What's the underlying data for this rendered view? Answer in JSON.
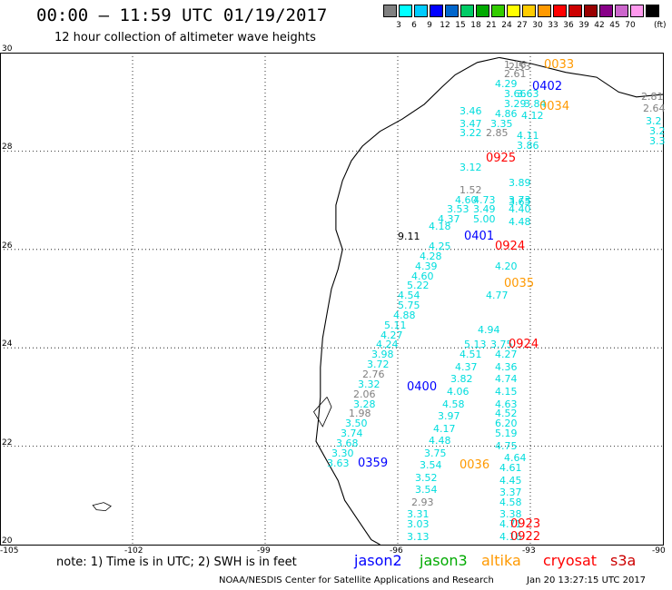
{
  "header": {
    "title": "00:00 – 11:59 UTC 01/19/2017",
    "subtitle": "12 hour collection of altimeter wave heights"
  },
  "legend": {
    "colors": [
      "#808080",
      "#00ffff",
      "#00ccff",
      "#0000ff",
      "#0066cc",
      "#00cc66",
      "#00aa00",
      "#33cc00",
      "#ffff00",
      "#ffcc00",
      "#ff9900",
      "#ff0000",
      "#cc0000",
      "#990000",
      "#880088",
      "#cc66cc",
      "#ff99ee",
      "#000000"
    ],
    "labels": [
      "3",
      "6",
      "9",
      "12",
      "15",
      "18",
      "21",
      "24",
      "27",
      "30",
      "33",
      "36",
      "39",
      "42",
      "45",
      "70"
    ],
    "unit": "(ft)"
  },
  "map": {
    "lon_labels": [
      "-105",
      "-102",
      "-99",
      "-96",
      "-93",
      "-90"
    ],
    "lat_labels": [
      "30",
      "28",
      "26",
      "24",
      "22",
      "20"
    ],
    "lon_range": [
      -105,
      -90
    ],
    "lat_range": [
      20,
      30
    ]
  },
  "observations": [
    {
      "v": "2.53",
      "c": "#808080",
      "lon": -93.5,
      "lat": 29.7
    },
    {
      "v": "1.16",
      "c": "#808080",
      "lon": -93.6,
      "lat": 29.75
    },
    {
      "v": "2.61",
      "c": "#808080",
      "lon": -93.6,
      "lat": 29.55
    },
    {
      "v": "4.29",
      "c": "#00dddd",
      "lon": -93.8,
      "lat": 29.35
    },
    {
      "v": "3.66",
      "c": "#00dddd",
      "lon": -93.6,
      "lat": 29.15
    },
    {
      "v": "3.63",
      "c": "#00dddd",
      "lon": -93.3,
      "lat": 29.15
    },
    {
      "v": "3.29",
      "c": "#00dddd",
      "lon": -93.6,
      "lat": 28.95
    },
    {
      "v": "3.84",
      "c": "#00dddd",
      "lon": -93.15,
      "lat": 28.95
    },
    {
      "v": "3.46",
      "c": "#00dddd",
      "lon": -94.6,
      "lat": 28.8
    },
    {
      "v": "4.86",
      "c": "#00dddd",
      "lon": -93.8,
      "lat": 28.75
    },
    {
      "v": "4.12",
      "c": "#00dddd",
      "lon": -93.2,
      "lat": 28.7
    },
    {
      "v": "3.47",
      "c": "#00dddd",
      "lon": -94.6,
      "lat": 28.55
    },
    {
      "v": "3.35",
      "c": "#00dddd",
      "lon": -93.9,
      "lat": 28.55
    },
    {
      "v": "4.11",
      "c": "#00dddd",
      "lon": -93.3,
      "lat": 28.3
    },
    {
      "v": "3.22",
      "c": "#00dddd",
      "lon": -94.6,
      "lat": 28.35
    },
    {
      "v": "2.85",
      "c": "#808080",
      "lon": -94.0,
      "lat": 28.35
    },
    {
      "v": "3.86",
      "c": "#00dddd",
      "lon": -93.3,
      "lat": 28.1
    },
    {
      "v": "3.12",
      "c": "#00dddd",
      "lon": -94.6,
      "lat": 27.65
    },
    {
      "v": "3.89",
      "c": "#00dddd",
      "lon": -93.5,
      "lat": 27.35
    },
    {
      "v": "3.65",
      "c": "#00dddd",
      "lon": -93.5,
      "lat": 26.95
    },
    {
      "v": "1.52",
      "c": "#808080",
      "lon": -94.6,
      "lat": 27.2
    },
    {
      "v": "4.60",
      "c": "#00dddd",
      "lon": -94.7,
      "lat": 27.0
    },
    {
      "v": "4.73",
      "c": "#00dddd",
      "lon": -94.3,
      "lat": 27.0
    },
    {
      "v": "3.73",
      "c": "#00dddd",
      "lon": -93.5,
      "lat": 27.0
    },
    {
      "v": "3.53",
      "c": "#00dddd",
      "lon": -94.9,
      "lat": 26.8
    },
    {
      "v": "3.49",
      "c": "#00dddd",
      "lon": -94.3,
      "lat": 26.8
    },
    {
      "v": "4.40",
      "c": "#00dddd",
      "lon": -93.5,
      "lat": 26.8
    },
    {
      "v": "4.37",
      "c": "#00dddd",
      "lon": -95.1,
      "lat": 26.6
    },
    {
      "v": "5.00",
      "c": "#00dddd",
      "lon": -94.3,
      "lat": 26.6
    },
    {
      "v": "4.48",
      "c": "#00dddd",
      "lon": -93.5,
      "lat": 26.55
    },
    {
      "v": "4.18",
      "c": "#00dddd",
      "lon": -95.3,
      "lat": 26.45
    },
    {
      "v": "9.11",
      "c": "#000000",
      "lon": -96.0,
      "lat": 26.25
    },
    {
      "v": "4.25",
      "c": "#00dddd",
      "lon": -95.3,
      "lat": 26.05
    },
    {
      "v": "4.28",
      "c": "#00dddd",
      "lon": -95.5,
      "lat": 25.85
    },
    {
      "v": "4.39",
      "c": "#00dddd",
      "lon": -95.6,
      "lat": 25.65
    },
    {
      "v": "4.20",
      "c": "#00dddd",
      "lon": -93.8,
      "lat": 25.65
    },
    {
      "v": "4.60",
      "c": "#00dddd",
      "lon": -95.7,
      "lat": 25.45
    },
    {
      "v": "5.22",
      "c": "#00dddd",
      "lon": -95.8,
      "lat": 25.25
    },
    {
      "v": "4.54",
      "c": "#00dddd",
      "lon": -96.0,
      "lat": 25.05
    },
    {
      "v": "4.77",
      "c": "#00dddd",
      "lon": -94.0,
      "lat": 25.05
    },
    {
      "v": "5.75",
      "c": "#00dddd",
      "lon": -96.0,
      "lat": 24.85
    },
    {
      "v": "4.88",
      "c": "#00dddd",
      "lon": -96.1,
      "lat": 24.65
    },
    {
      "v": "5.11",
      "c": "#00dddd",
      "lon": -96.3,
      "lat": 24.45
    },
    {
      "v": "4.27",
      "c": "#00dddd",
      "lon": -96.4,
      "lat": 24.25
    },
    {
      "v": "4.94",
      "c": "#00dddd",
      "lon": -94.2,
      "lat": 24.35
    },
    {
      "v": "4.24",
      "c": "#00dddd",
      "lon": -96.5,
      "lat": 24.05
    },
    {
      "v": "5.13",
      "c": "#00dddd",
      "lon": -94.5,
      "lat": 24.05
    },
    {
      "v": "3.75",
      "c": "#00dddd",
      "lon": -93.9,
      "lat": 24.05
    },
    {
      "v": "3.98",
      "c": "#00dddd",
      "lon": -96.6,
      "lat": 23.85
    },
    {
      "v": "4.51",
      "c": "#00dddd",
      "lon": -94.6,
      "lat": 23.85
    },
    {
      "v": "4.27",
      "c": "#00dddd",
      "lon": -93.8,
      "lat": 23.85
    },
    {
      "v": "3.72",
      "c": "#00dddd",
      "lon": -96.7,
      "lat": 23.65
    },
    {
      "v": "4.37",
      "c": "#00dddd",
      "lon": -94.7,
      "lat": 23.6
    },
    {
      "v": "4.36",
      "c": "#00dddd",
      "lon": -93.8,
      "lat": 23.6
    },
    {
      "v": "2.76",
      "c": "#808080",
      "lon": -96.8,
      "lat": 23.45
    },
    {
      "v": "3.82",
      "c": "#00dddd",
      "lon": -94.8,
      "lat": 23.35
    },
    {
      "v": "4.74",
      "c": "#00dddd",
      "lon": -93.8,
      "lat": 23.35
    },
    {
      "v": "3.32",
      "c": "#00dddd",
      "lon": -96.9,
      "lat": 23.25
    },
    {
      "v": "4.06",
      "c": "#00dddd",
      "lon": -94.9,
      "lat": 23.1
    },
    {
      "v": "4.15",
      "c": "#00dddd",
      "lon": -93.8,
      "lat": 23.1
    },
    {
      "v": "2.06",
      "c": "#808080",
      "lon": -97.0,
      "lat": 23.05
    },
    {
      "v": "3.28",
      "c": "#00dddd",
      "lon": -97.0,
      "lat": 22.85
    },
    {
      "v": "4.58",
      "c": "#00dddd",
      "lon": -95.0,
      "lat": 22.85
    },
    {
      "v": "4.63",
      "c": "#00dddd",
      "lon": -93.8,
      "lat": 22.85
    },
    {
      "v": "1.98",
      "c": "#808080",
      "lon": -97.1,
      "lat": 22.65
    },
    {
      "v": "3.97",
      "c": "#00dddd",
      "lon": -95.1,
      "lat": 22.6
    },
    {
      "v": "4.52",
      "c": "#00dddd",
      "lon": -93.8,
      "lat": 22.65
    },
    {
      "v": "3.50",
      "c": "#00dddd",
      "lon": -97.2,
      "lat": 22.45
    },
    {
      "v": "6.20",
      "c": "#00dddd",
      "lon": -93.8,
      "lat": 22.45
    },
    {
      "v": "3.74",
      "c": "#00dddd",
      "lon": -97.3,
      "lat": 22.25
    },
    {
      "v": "4.17",
      "c": "#00dddd",
      "lon": -95.2,
      "lat": 22.35
    },
    {
      "v": "5.19",
      "c": "#00dddd",
      "lon": -93.8,
      "lat": 22.25
    },
    {
      "v": "3.68",
      "c": "#00dddd",
      "lon": -97.4,
      "lat": 22.05
    },
    {
      "v": "4.48",
      "c": "#00dddd",
      "lon": -95.3,
      "lat": 22.1
    },
    {
      "v": "4.75",
      "c": "#00dddd",
      "lon": -93.8,
      "lat": 22.0
    },
    {
      "v": "3.30",
      "c": "#00dddd",
      "lon": -97.5,
      "lat": 21.85
    },
    {
      "v": "3.75",
      "c": "#00dddd",
      "lon": -95.4,
      "lat": 21.85
    },
    {
      "v": "4.64",
      "c": "#00dddd",
      "lon": -93.6,
      "lat": 21.75
    },
    {
      "v": "3.63",
      "c": "#00dddd",
      "lon": -97.6,
      "lat": 21.65
    },
    {
      "v": "3.54",
      "c": "#00dddd",
      "lon": -95.5,
      "lat": 21.6
    },
    {
      "v": "4.61",
      "c": "#00dddd",
      "lon": -93.7,
      "lat": 21.55
    },
    {
      "v": "3.52",
      "c": "#00dddd",
      "lon": -95.6,
      "lat": 21.35
    },
    {
      "v": "4.45",
      "c": "#00dddd",
      "lon": -93.7,
      "lat": 21.3
    },
    {
      "v": "3.54",
      "c": "#00dddd",
      "lon": -95.6,
      "lat": 21.1
    },
    {
      "v": "3.37",
      "c": "#00dddd",
      "lon": -93.7,
      "lat": 21.05
    },
    {
      "v": "2.93",
      "c": "#808080",
      "lon": -95.7,
      "lat": 20.85
    },
    {
      "v": "4.58",
      "c": "#00dddd",
      "lon": -93.7,
      "lat": 20.85
    },
    {
      "v": "3.31",
      "c": "#00dddd",
      "lon": -95.8,
      "lat": 20.6
    },
    {
      "v": "3.38",
      "c": "#00dddd",
      "lon": -93.7,
      "lat": 20.6
    },
    {
      "v": "3.03",
      "c": "#00dddd",
      "lon": -95.8,
      "lat": 20.4
    },
    {
      "v": "4.71",
      "c": "#00dddd",
      "lon": -93.7,
      "lat": 20.4
    },
    {
      "v": "3.13",
      "c": "#00dddd",
      "lon": -95.8,
      "lat": 20.15
    },
    {
      "v": "4.16",
      "c": "#00dddd",
      "lon": -93.7,
      "lat": 20.15
    },
    {
      "v": "2.81",
      "c": "#808080",
      "lon": -90.5,
      "lat": 29.1
    },
    {
      "v": "2.64",
      "c": "#808080",
      "lon": -90.45,
      "lat": 28.85
    },
    {
      "v": "3.2",
      "c": "#00dddd",
      "lon": -90.4,
      "lat": 28.6
    },
    {
      "v": "3.2",
      "c": "#00dddd",
      "lon": -90.3,
      "lat": 28.4
    },
    {
      "v": "3.3",
      "c": "#00dddd",
      "lon": -90.3,
      "lat": 28.2
    }
  ],
  "passes": [
    {
      "v": "0402",
      "c": "#0000ff",
      "lon": -92.95,
      "lat": 29.3
    },
    {
      "v": "0034",
      "c": "#ff9900",
      "lon": -92.8,
      "lat": 28.9
    },
    {
      "v": "0925",
      "c": "#ff0000",
      "lon": -94.0,
      "lat": 27.85
    },
    {
      "v": "0401",
      "c": "#0000ff",
      "lon": -94.5,
      "lat": 26.25
    },
    {
      "v": "0924",
      "c": "#ff0000",
      "lon": -93.8,
      "lat": 26.05
    },
    {
      "v": "0035",
      "c": "#ff9900",
      "lon": -93.6,
      "lat": 25.3
    },
    {
      "v": "0924",
      "c": "#ff0000",
      "lon": -93.5,
      "lat": 24.05
    },
    {
      "v": "0400",
      "c": "#0000ff",
      "lon": -95.8,
      "lat": 23.2
    },
    {
      "v": "0359",
      "c": "#0000ff",
      "lon": -96.9,
      "lat": 21.65
    },
    {
      "v": "0036",
      "c": "#ff9900",
      "lon": -94.6,
      "lat": 21.6
    },
    {
      "v": "0923",
      "c": "#ff0000",
      "lon": -93.45,
      "lat": 20.4
    },
    {
      "v": "0922",
      "c": "#ff0000",
      "lon": -93.45,
      "lat": 20.15
    },
    {
      "v": "0033",
      "c": "#ff9900",
      "lon": -92.7,
      "lat": 29.75
    }
  ],
  "footer": {
    "note": "note:  1) Time is in UTC;  2) SWH is in feet",
    "satellites": [
      {
        "name": "jason2",
        "color": "#0000ff"
      },
      {
        "name": "jason3",
        "color": "#00aa00"
      },
      {
        "name": "altika",
        "color": "#ff9900"
      },
      {
        "name": "cryosat",
        "color": "#ff0000"
      },
      {
        "name": "s3a",
        "color": "#cc0000"
      }
    ],
    "credit": "NOAA/NESDIS Center for Satellite Applications and Research",
    "timestamp": "Jan 20 13:27:15 UTC 2017"
  }
}
